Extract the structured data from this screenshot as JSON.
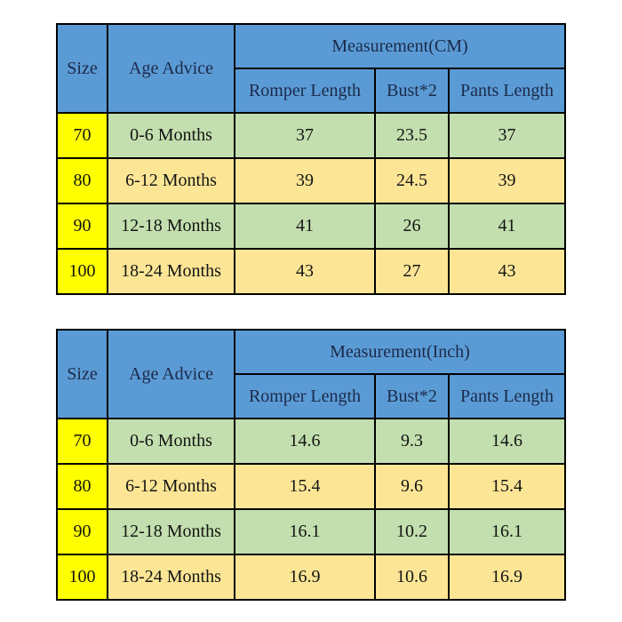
{
  "colors": {
    "page_bg": "#ffffff",
    "header_blue": "#5b9bd5",
    "header_text": "#1b2a4a",
    "size_yellow": "#ffff00",
    "row_green": "#c3dfaf",
    "row_tan": "#fce696",
    "border": "#000000",
    "data_text": "#141414"
  },
  "tables": [
    {
      "id": "size-chart-cm",
      "corner": {
        "size_label": "Size",
        "age_label": "Age Advice"
      },
      "measurement_label": "Measurement(CM)",
      "measurement_columns": [
        "Romper Length",
        "Bust*2",
        "Pants Length"
      ],
      "rows": [
        {
          "size": "70",
          "age": "0-6 Months",
          "romper": "37",
          "bust": "23.5",
          "pants": "37"
        },
        {
          "size": "80",
          "age": "6-12 Months",
          "romper": "39",
          "bust": "24.5",
          "pants": "39"
        },
        {
          "size": "90",
          "age": "12-18 Months",
          "romper": "41",
          "bust": "26",
          "pants": "41"
        },
        {
          "size": "100",
          "age": "18-24 Months",
          "romper": "43",
          "bust": "27",
          "pants": "43"
        }
      ]
    },
    {
      "id": "size-chart-inch",
      "corner": {
        "size_label": "Size",
        "age_label": "Age Advice"
      },
      "measurement_label": "Measurement(Inch)",
      "measurement_columns": [
        "Romper Length",
        "Bust*2",
        "Pants Length"
      ],
      "rows": [
        {
          "size": "70",
          "age": "0-6 Months",
          "romper": "14.6",
          "bust": "9.3",
          "pants": "14.6"
        },
        {
          "size": "80",
          "age": "6-12 Months",
          "romper": "15.4",
          "bust": "9.6",
          "pants": "15.4"
        },
        {
          "size": "90",
          "age": "12-18 Months",
          "romper": "16.1",
          "bust": "10.2",
          "pants": "16.1"
        },
        {
          "size": "100",
          "age": "18-24 Months",
          "romper": "16.9",
          "bust": "10.6",
          "pants": "16.9"
        }
      ]
    }
  ]
}
